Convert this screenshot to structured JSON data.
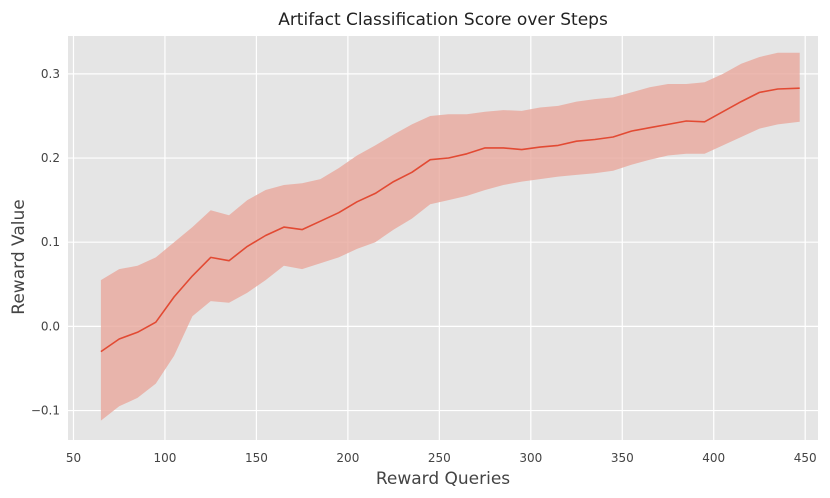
{
  "chart_data": {
    "type": "line",
    "title": "Artifact Classification Score over Steps",
    "xlabel": "Reward Queries",
    "ylabel": "Reward Value",
    "xlim": [
      47,
      457
    ],
    "ylim": [
      -0.135,
      0.345
    ],
    "xticks": [
      50,
      100,
      150,
      200,
      250,
      300,
      350,
      400,
      450
    ],
    "xtick_labels": [
      "50",
      "100",
      "150",
      "200",
      "250",
      "300",
      "350",
      "400",
      "450"
    ],
    "yticks": [
      -0.1,
      0.0,
      0.1,
      0.2,
      0.3
    ],
    "ytick_labels": [
      "−0.1",
      "0.0",
      "0.1",
      "0.2",
      "0.3"
    ],
    "grid": true,
    "background": "#e5e5e5",
    "line_color": "#e24a33",
    "band_color": "#e9a79c",
    "series": [
      {
        "x": [
          65,
          75,
          85,
          95,
          105,
          115,
          125,
          135,
          145,
          155,
          165,
          175,
          185,
          195,
          205,
          215,
          225,
          235,
          245,
          255,
          265,
          275,
          285,
          295,
          305,
          315,
          325,
          335,
          345,
          355,
          365,
          375,
          385,
          395,
          405,
          415,
          425,
          435,
          447
        ],
        "y": [
          -0.03,
          -0.015,
          -0.007,
          0.005,
          0.035,
          0.06,
          0.082,
          0.078,
          0.095,
          0.108,
          0.118,
          0.115,
          0.125,
          0.135,
          0.148,
          0.158,
          0.172,
          0.183,
          0.198,
          0.2,
          0.205,
          0.212,
          0.212,
          0.21,
          0.213,
          0.215,
          0.22,
          0.222,
          0.225,
          0.232,
          0.236,
          0.24,
          0.244,
          0.243,
          0.255,
          0.267,
          0.278,
          0.282,
          0.283
        ],
        "lower": [
          -0.112,
          -0.095,
          -0.085,
          -0.068,
          -0.035,
          0.012,
          0.03,
          0.028,
          0.04,
          0.055,
          0.072,
          0.068,
          0.075,
          0.082,
          0.092,
          0.1,
          0.115,
          0.128,
          0.145,
          0.15,
          0.155,
          0.162,
          0.168,
          0.172,
          0.175,
          0.178,
          0.18,
          0.182,
          0.185,
          0.192,
          0.198,
          0.203,
          0.205,
          0.205,
          0.215,
          0.225,
          0.235,
          0.24,
          0.243
        ],
        "upper": [
          0.055,
          0.068,
          0.072,
          0.082,
          0.1,
          0.118,
          0.138,
          0.132,
          0.15,
          0.162,
          0.168,
          0.17,
          0.175,
          0.188,
          0.203,
          0.215,
          0.228,
          0.24,
          0.25,
          0.252,
          0.252,
          0.255,
          0.257,
          0.256,
          0.26,
          0.262,
          0.267,
          0.27,
          0.272,
          0.278,
          0.284,
          0.288,
          0.288,
          0.29,
          0.3,
          0.312,
          0.32,
          0.325,
          0.325
        ]
      }
    ]
  }
}
